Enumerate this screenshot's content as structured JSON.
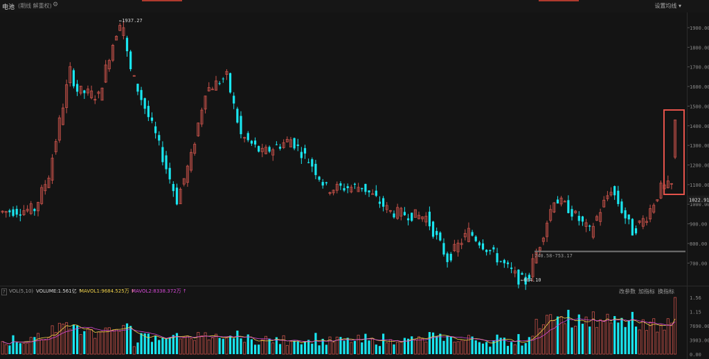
{
  "header": {
    "title": "电池",
    "subtitle": "(期线 解重权)",
    "set_ma_label": "设置均线 ▾"
  },
  "price_axis": {
    "ticks": [
      "1900.00",
      "1800.00",
      "1700.00",
      "1600.00",
      "1500.00",
      "1400.00",
      "1300.00",
      "1200.00",
      "1100.00",
      "1000.00",
      "900.00",
      "800.00",
      "700.00"
    ],
    "current_value": "1022.91"
  },
  "annotations": {
    "high_label": "←1937.27",
    "low_label": "←604.10",
    "range_label": "740.58-753.17"
  },
  "volume_panel": {
    "help": "?",
    "label": "VOL(5,10)",
    "volume": "VOLUME:1.561亿 ↑",
    "mavol1": "MAVOL1:9684.525万 ↑",
    "mavol2": "MAVOL2:8338.372万 ↑",
    "btn_params": "改参数",
    "btn_add": "加指标",
    "btn_switch": "换指标",
    "axis_ticks": [
      "1.56",
      "1.15",
      "7690.00",
      "3903.00",
      "0.00"
    ]
  },
  "colors": {
    "up": "#c9524a",
    "down": "#19e6f0",
    "mavol1": "#f0d24a",
    "mavol2": "#d84ad8",
    "highlight": "#e5534b"
  }
}
